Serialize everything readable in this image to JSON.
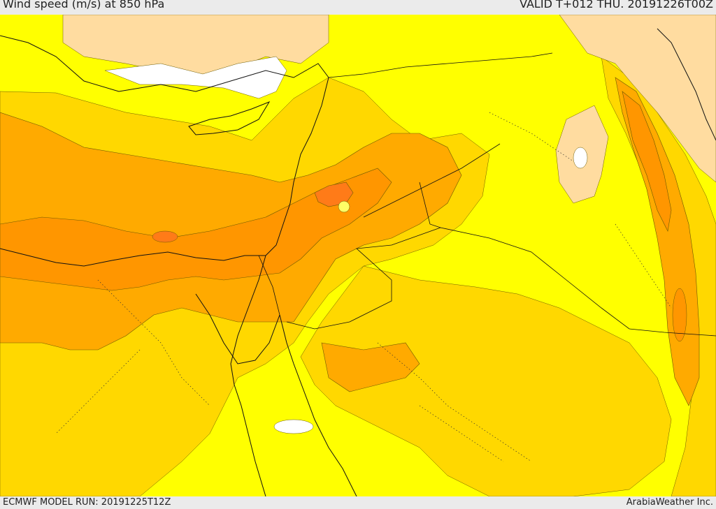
{
  "header": {
    "title": "Wind speed (m/s) at 850 hPa",
    "valid_time": "VALID T+012 THU. 20191226T00Z"
  },
  "footer": {
    "model_run": "ECMWF MODEL RUN: 20191225T12Z",
    "credit": "ArabiaWeather Inc."
  },
  "colors": {
    "calm": "#ffffff",
    "light": "#ffdca0",
    "low": "#ffff00",
    "moderate": "#ffd800",
    "fresh": "#ffaa00",
    "strong": "#ff9600",
    "very_strong": "#ff7b18",
    "coast": "#111111",
    "border": "#111111"
  }
}
